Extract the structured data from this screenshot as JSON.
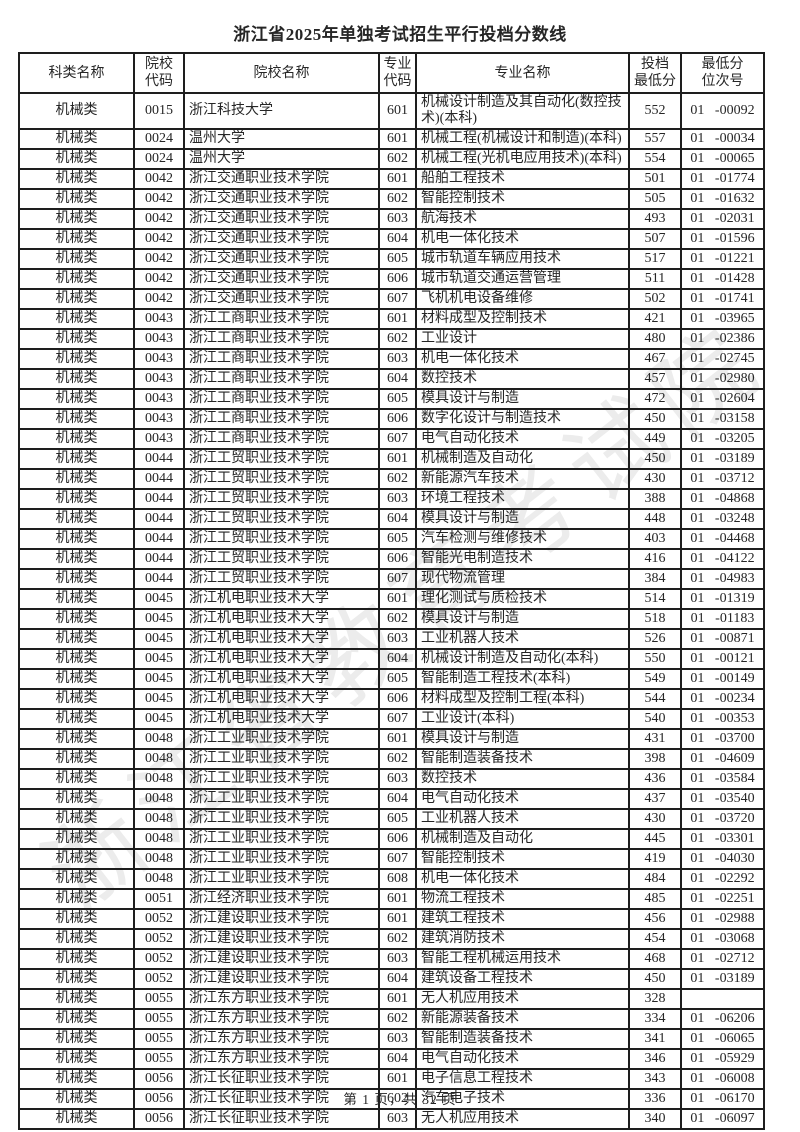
{
  "title": "浙江省2025年单独考试招生平行投档分数线",
  "watermark": "浙江省教育考试院",
  "footer": "第 1 页，共 32 页",
  "table": {
    "headers": [
      "科类名称",
      "院校\n代码",
      "院校名称",
      "专业\n代码",
      "专业名称",
      "投档\n最低分",
      "最低分\n位次号"
    ],
    "rows": [
      [
        "机械类",
        "0015",
        "浙江科技大学",
        "601",
        "机械设计制造及其自动化(数控技术)(本科)",
        "552",
        "01 -00092"
      ],
      [
        "机械类",
        "0024",
        "温州大学",
        "601",
        "机械工程(机械设计和制造)(本科)",
        "557",
        "01 -00034"
      ],
      [
        "机械类",
        "0024",
        "温州大学",
        "602",
        "机械工程(光机电应用技术)(本科)",
        "554",
        "01 -00065"
      ],
      [
        "机械类",
        "0042",
        "浙江交通职业技术学院",
        "601",
        "船舶工程技术",
        "501",
        "01 -01774"
      ],
      [
        "机械类",
        "0042",
        "浙江交通职业技术学院",
        "602",
        "智能控制技术",
        "505",
        "01 -01632"
      ],
      [
        "机械类",
        "0042",
        "浙江交通职业技术学院",
        "603",
        "航海技术",
        "493",
        "01 -02031"
      ],
      [
        "机械类",
        "0042",
        "浙江交通职业技术学院",
        "604",
        "机电一体化技术",
        "507",
        "01 -01596"
      ],
      [
        "机械类",
        "0042",
        "浙江交通职业技术学院",
        "605",
        "城市轨道车辆应用技术",
        "517",
        "01 -01221"
      ],
      [
        "机械类",
        "0042",
        "浙江交通职业技术学院",
        "606",
        "城市轨道交通运营管理",
        "511",
        "01 -01428"
      ],
      [
        "机械类",
        "0042",
        "浙江交通职业技术学院",
        "607",
        "飞机机电设备维修",
        "502",
        "01 -01741"
      ],
      [
        "机械类",
        "0043",
        "浙江工商职业技术学院",
        "601",
        "材料成型及控制技术",
        "421",
        "01 -03965"
      ],
      [
        "机械类",
        "0043",
        "浙江工商职业技术学院",
        "602",
        "工业设计",
        "480",
        "01 -02386"
      ],
      [
        "机械类",
        "0043",
        "浙江工商职业技术学院",
        "603",
        "机电一体化技术",
        "467",
        "01 -02745"
      ],
      [
        "机械类",
        "0043",
        "浙江工商职业技术学院",
        "604",
        "数控技术",
        "457",
        "01 -02980"
      ],
      [
        "机械类",
        "0043",
        "浙江工商职业技术学院",
        "605",
        "模具设计与制造",
        "472",
        "01 -02604"
      ],
      [
        "机械类",
        "0043",
        "浙江工商职业技术学院",
        "606",
        "数字化设计与制造技术",
        "450",
        "01 -03158"
      ],
      [
        "机械类",
        "0043",
        "浙江工商职业技术学院",
        "607",
        "电气自动化技术",
        "449",
        "01 -03205"
      ],
      [
        "机械类",
        "0044",
        "浙江工贸职业技术学院",
        "601",
        "机械制造及自动化",
        "450",
        "01 -03189"
      ],
      [
        "机械类",
        "0044",
        "浙江工贸职业技术学院",
        "602",
        "新能源汽车技术",
        "430",
        "01 -03712"
      ],
      [
        "机械类",
        "0044",
        "浙江工贸职业技术学院",
        "603",
        "环境工程技术",
        "388",
        "01 -04868"
      ],
      [
        "机械类",
        "0044",
        "浙江工贸职业技术学院",
        "604",
        "模具设计与制造",
        "448",
        "01 -03248"
      ],
      [
        "机械类",
        "0044",
        "浙江工贸职业技术学院",
        "605",
        "汽车检测与维修技术",
        "403",
        "01 -04468"
      ],
      [
        "机械类",
        "0044",
        "浙江工贸职业技术学院",
        "606",
        "智能光电制造技术",
        "416",
        "01 -04122"
      ],
      [
        "机械类",
        "0044",
        "浙江工贸职业技术学院",
        "607",
        "现代物流管理",
        "384",
        "01 -04983"
      ],
      [
        "机械类",
        "0045",
        "浙江机电职业技术大学",
        "601",
        "理化测试与质检技术",
        "514",
        "01 -01319"
      ],
      [
        "机械类",
        "0045",
        "浙江机电职业技术大学",
        "602",
        "模具设计与制造",
        "518",
        "01 -01183"
      ],
      [
        "机械类",
        "0045",
        "浙江机电职业技术大学",
        "603",
        "工业机器人技术",
        "526",
        "01 -00871"
      ],
      [
        "机械类",
        "0045",
        "浙江机电职业技术大学",
        "604",
        "机械设计制造及自动化(本科)",
        "550",
        "01 -00121"
      ],
      [
        "机械类",
        "0045",
        "浙江机电职业技术大学",
        "605",
        "智能制造工程技术(本科)",
        "549",
        "01 -00149"
      ],
      [
        "机械类",
        "0045",
        "浙江机电职业技术大学",
        "606",
        "材料成型及控制工程(本科)",
        "544",
        "01 -00234"
      ],
      [
        "机械类",
        "0045",
        "浙江机电职业技术大学",
        "607",
        "工业设计(本科)",
        "540",
        "01 -00353"
      ],
      [
        "机械类",
        "0048",
        "浙江工业职业技术学院",
        "601",
        "模具设计与制造",
        "431",
        "01 -03700"
      ],
      [
        "机械类",
        "0048",
        "浙江工业职业技术学院",
        "602",
        "智能制造装备技术",
        "398",
        "01 -04609"
      ],
      [
        "机械类",
        "0048",
        "浙江工业职业技术学院",
        "603",
        "数控技术",
        "436",
        "01 -03584"
      ],
      [
        "机械类",
        "0048",
        "浙江工业职业技术学院",
        "604",
        "电气自动化技术",
        "437",
        "01 -03540"
      ],
      [
        "机械类",
        "0048",
        "浙江工业职业技术学院",
        "605",
        "工业机器人技术",
        "430",
        "01 -03720"
      ],
      [
        "机械类",
        "0048",
        "浙江工业职业技术学院",
        "606",
        "机械制造及自动化",
        "445",
        "01 -03301"
      ],
      [
        "机械类",
        "0048",
        "浙江工业职业技术学院",
        "607",
        "智能控制技术",
        "419",
        "01 -04030"
      ],
      [
        "机械类",
        "0048",
        "浙江工业职业技术学院",
        "608",
        "机电一体化技术",
        "484",
        "01 -02292"
      ],
      [
        "机械类",
        "0051",
        "浙江经济职业技术学院",
        "601",
        "物流工程技术",
        "485",
        "01 -02251"
      ],
      [
        "机械类",
        "0052",
        "浙江建设职业技术学院",
        "601",
        "建筑工程技术",
        "456",
        "01 -02988"
      ],
      [
        "机械类",
        "0052",
        "浙江建设职业技术学院",
        "602",
        "建筑消防技术",
        "454",
        "01 -03068"
      ],
      [
        "机械类",
        "0052",
        "浙江建设职业技术学院",
        "603",
        "智能工程机械运用技术",
        "468",
        "01 -02712"
      ],
      [
        "机械类",
        "0052",
        "浙江建设职业技术学院",
        "604",
        "建筑设备工程技术",
        "450",
        "01 -03189"
      ],
      [
        "机械类",
        "0055",
        "浙江东方职业技术学院",
        "601",
        "无人机应用技术",
        "328",
        ""
      ],
      [
        "机械类",
        "0055",
        "浙江东方职业技术学院",
        "602",
        "新能源装备技术",
        "334",
        "01 -06206"
      ],
      [
        "机械类",
        "0055",
        "浙江东方职业技术学院",
        "603",
        "智能制造装备技术",
        "341",
        "01 -06065"
      ],
      [
        "机械类",
        "0055",
        "浙江东方职业技术学院",
        "604",
        "电气自动化技术",
        "346",
        "01 -05929"
      ],
      [
        "机械类",
        "0056",
        "浙江长征职业技术学院",
        "601",
        "电子信息工程技术",
        "343",
        "01 -06008"
      ],
      [
        "机械类",
        "0056",
        "浙江长征职业技术学院",
        "602",
        "汽车电子技术",
        "336",
        "01 -06170"
      ],
      [
        "机械类",
        "0056",
        "浙江长征职业技术学院",
        "603",
        "无人机应用技术",
        "340",
        "01 -06097"
      ]
    ]
  }
}
